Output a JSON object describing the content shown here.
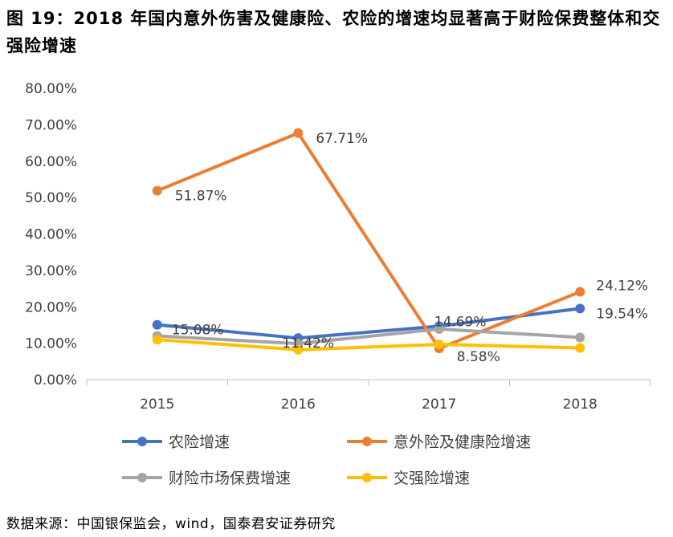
{
  "title": "图 19：2018 年国内意外伤害及健康险、农险的增速均显著高于财险保费整体和交强险增速",
  "source": "数据来源：中国银保监会，wind，国泰君安证券研究",
  "chart_data": {
    "type": "line",
    "categories": [
      "2015",
      "2016",
      "2017",
      "2018"
    ],
    "ylim": [
      0,
      80
    ],
    "yticks": [
      0,
      10,
      20,
      30,
      40,
      50,
      60,
      70,
      80
    ],
    "ytick_labels": [
      "0.00%",
      "10.00%",
      "20.00%",
      "30.00%",
      "40.00%",
      "50.00%",
      "60.00%",
      "70.00%",
      "80.00%"
    ],
    "grid": false,
    "legend_position": "bottom",
    "series": [
      {
        "name": "农险增速",
        "color": "#4472C4",
        "values": [
          15.08,
          11.42,
          14.69,
          19.54
        ],
        "labels": [
          "15.08%",
          "11.42%",
          "14.69%",
          "19.54%"
        ]
      },
      {
        "name": "意外险及健康险增速",
        "color": "#ED7D31",
        "values": [
          51.87,
          67.71,
          8.58,
          24.12
        ],
        "labels": [
          "51.87%",
          "67.71%",
          "8.58%",
          "24.12%"
        ]
      },
      {
        "name": "财险市场保费增速",
        "color": "#A5A5A5",
        "values": [
          12.0,
          9.9,
          13.9,
          11.6
        ],
        "labels": []
      },
      {
        "name": "交强险增速",
        "color": "#FFC000",
        "values": [
          11.0,
          8.2,
          9.7,
          8.7
        ],
        "labels": []
      }
    ]
  }
}
